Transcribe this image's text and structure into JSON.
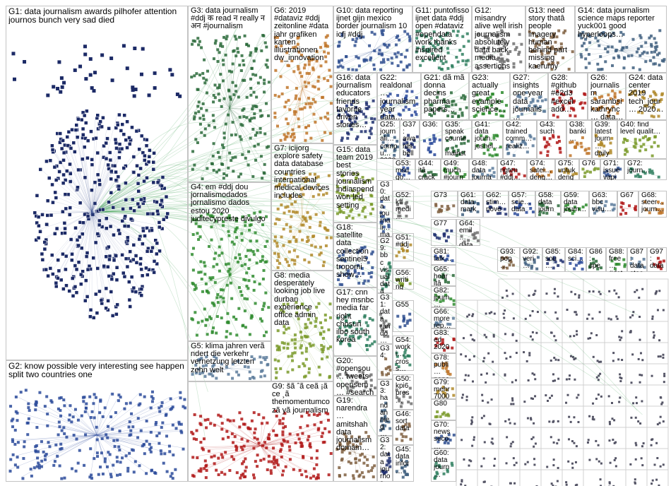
{
  "groups": [
    {
      "label": "G1: data journalism awards pilhofer attention journos bunch very sad died"
    },
    {
      "label": "G2: know possible very interesting see happen split two countries one"
    },
    {
      "label": "G3: data journalism #ddj क read न really न अन #journalism"
    },
    {
      "label": "G4: em #ddj dou jornalismodados jornalismo dados estou 2020 juditecypreste divulgo"
    },
    {
      "label": "G5: klima jahren verã ndert die verkehr vernetzung letzten zehn welt"
    },
    {
      "label": "G9: šã ˆã ceã ¡ã ce ¸ã themomentumco zã yã journalism"
    },
    {
      "label": "G6: 2019 #dataviz #ddj zeitonline #data jahr grafiken karten illustrationen dw_innovation"
    },
    {
      "label": "G7: icijorg explore safety data database countries international medical devices includes"
    },
    {
      "label": "G8: media desperately looking job live durban experience office admin data"
    },
    {
      "label": "G10: data reporting ijnet gijn mexico border journalism 10 icfj #ddj"
    },
    {
      "label": "G11: puntofisso ijnet data #ddj open #dataviz #opendata work thanks inspired excellent"
    },
    {
      "label": "G12: misandry alive well irish journalism absolutely data back media assertions"
    },
    {
      "label": "G13: need story thatâ people imagery human behind part missing kaerumy"
    },
    {
      "label": "G14: data journalism science maps reporter yuck001 good hyperloops…"
    },
    {
      "label": "G16: data journalism educators friends favorite driven stories…"
    },
    {
      "label": "G22: realdonal… journalism year data…"
    },
    {
      "label": "G21: dã mã donna decins pharma papers…"
    },
    {
      "label": "G23: actually great example science…"
    },
    {
      "label": "G27: insights one year data journalis…"
    },
    {
      "label": "G28: #github #e2d3 #excel add…"
    },
    {
      "label": "G26: journalism sarambsi kathrync… data…"
    },
    {
      "label": "G24: data center 2019 tech_jour… 2020…"
    },
    {
      "label": "G15: data team 2019 best stories journalism indiaspend won led setting"
    },
    {
      "label": "G18: satellite data collection sentinel5 tropomi show…"
    },
    {
      "label": "G17: cnn hey msnbc media far right chosun ilbo south korea"
    },
    {
      "label": "G20: #opensou… tweets opensem… #search faceted…"
    },
    {
      "label": "G19: narendra… amitshah data journalism domain…"
    },
    {
      "label": "G25: journali… compu… 2020…"
    },
    {
      "label": "G37: awards belle rouvell…"
    },
    {
      "label": "G36:"
    },
    {
      "label": "G35: speak counte… mainst…"
    },
    {
      "label": "G41: data journ… joshel…"
    },
    {
      "label": "G42: trained comm… realiz…"
    },
    {
      "label": "G43: such"
    },
    {
      "label": "G38: banki…"
    },
    {
      "label": "G39: latest journ… daily…"
    },
    {
      "label": "G40: find level qualit…"
    },
    {
      "label": "G30: data journali… madeli… wrote…"
    },
    {
      "label": "G29: bbc visual data journali…"
    },
    {
      "label": "G31: data rando… bostonj… scienc…"
    },
    {
      "label": "G34:"
    },
    {
      "label": "G33: hand annieg… stories…"
    },
    {
      "label": "G32: data journos deadlin…"
    },
    {
      "label": "G53: msu go…"
    },
    {
      "label": "G44: itâ crack…"
    },
    {
      "label": "G49: much #journ…"
    },
    {
      "label": "G48: data journa…"
    },
    {
      "label": "G47: ngten #ddj…"
    },
    {
      "label": "G74: satel… deng…"
    },
    {
      "label": "G75: untuk deng…"
    },
    {
      "label": "G76"
    },
    {
      "label": "G71: issue vapi…"
    },
    {
      "label": "G72: journ…"
    },
    {
      "label": "G52: kff medi…"
    },
    {
      "label": "G73"
    },
    {
      "label": "G61: data mark…"
    },
    {
      "label": "G62: stim… nove…"
    },
    {
      "label": "G57: scie… data"
    },
    {
      "label": "G58: data journ…"
    },
    {
      "label": "G59: data journ…"
    },
    {
      "label": "G63: bbc visu…"
    },
    {
      "label": "G67"
    },
    {
      "label": "G68: steer… journ…"
    },
    {
      "label": "G51: #ddj"
    },
    {
      "label": "G56: writing"
    },
    {
      "label": "G55"
    },
    {
      "label": "G54: worki… cross…"
    },
    {
      "label": "G50: kpi6 pres…"
    },
    {
      "label": "G46: sort data"
    },
    {
      "label": "G45: data infor…"
    },
    {
      "label": "G77"
    },
    {
      "label": "G81: talk…"
    },
    {
      "label": "G65: hear itâ"
    },
    {
      "label": "G82: journ… lot…"
    },
    {
      "label": "G66: more rep…"
    },
    {
      "label": "G83: ed 2020…"
    },
    {
      "label": "G78: publi… pape…"
    },
    {
      "label": "G79: mehr 7000…"
    },
    {
      "label": "G80"
    },
    {
      "label": "G70: news seco…"
    },
    {
      "label": "G60: data journ…"
    },
    {
      "label": "G64: emil… data"
    },
    {
      "label": "G93: pop…"
    },
    {
      "label": "G92: veri…"
    },
    {
      "label": "G85: sou…"
    },
    {
      "label": "G84: sci…"
    },
    {
      "label": "G86: spe…"
    },
    {
      "label": "G88: free… #dat…"
    },
    {
      "label": "G87: data stea…"
    },
    {
      "label": "G97: data"
    }
  ]
}
